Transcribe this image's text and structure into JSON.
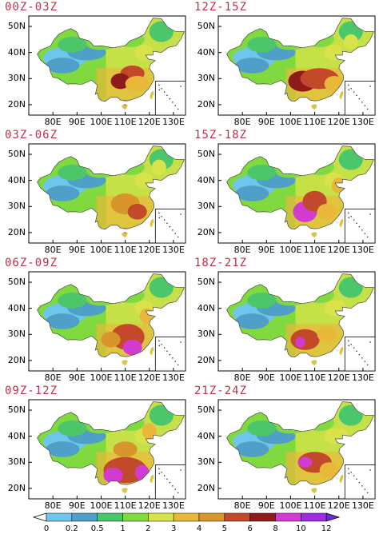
{
  "panels": [
    {
      "title": "00Z-03Z"
    },
    {
      "title": "12Z-15Z"
    },
    {
      "title": "03Z-06Z"
    },
    {
      "title": "15Z-18Z"
    },
    {
      "title": "06Z-09Z"
    },
    {
      "title": "18Z-21Z"
    },
    {
      "title": "09Z-12Z"
    },
    {
      "title": "21Z-24Z"
    }
  ],
  "axes": {
    "lat_labels": [
      "50N",
      "40N",
      "30N",
      "20N"
    ],
    "lon_labels": [
      "80E",
      "90E",
      "100E",
      "110E",
      "120E",
      "130E"
    ]
  },
  "colorbar": {
    "ticks": [
      "0",
      "0.2",
      "0.5",
      "1",
      "2",
      "3",
      "4",
      "5",
      "6",
      "8",
      "10",
      "12"
    ],
    "colors": [
      "#ffffff",
      "#6ec6ea",
      "#4f9fc8",
      "#4cc66b",
      "#7fd93f",
      "#d8e24a",
      "#e9b83a",
      "#d7952c",
      "#c24a2a",
      "#8e1a1a",
      "#d23bd0",
      "#a02ae0",
      "#6a2ad8"
    ]
  }
}
